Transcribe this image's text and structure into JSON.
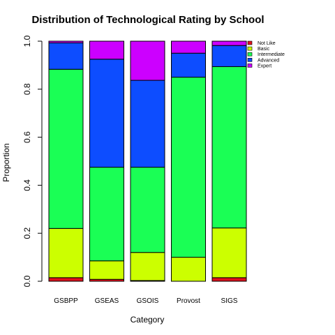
{
  "chart_data": {
    "type": "bar",
    "stacked": true,
    "title": "Distribution of Technological Rating by School",
    "xlabel": "Category",
    "ylabel": "Proportion",
    "ylim": [
      0,
      1
    ],
    "yticks": [
      "0.0",
      "0.2",
      "0.4",
      "0.6",
      "0.8",
      "1.0"
    ],
    "categories": [
      "GSBPP",
      "GSEAS",
      "GSOIS",
      "Provost",
      "SIGS"
    ],
    "series": [
      {
        "name": "Not Like",
        "color": "#e0111c",
        "values": [
          0.015,
          0.008,
          0.003,
          0.0,
          0.015
        ]
      },
      {
        "name": "Basic",
        "color": "#ccff00",
        "values": [
          0.205,
          0.077,
          0.117,
          0.1,
          0.207
        ]
      },
      {
        "name": "Intermediate",
        "color": "#1aff55",
        "values": [
          0.663,
          0.39,
          0.355,
          0.75,
          0.672
        ]
      },
      {
        "name": "Advanced",
        "color": "#0d4dff",
        "values": [
          0.11,
          0.45,
          0.362,
          0.1,
          0.088
        ]
      },
      {
        "name": "Expert",
        "color": "#cc00ff",
        "values": [
          0.007,
          0.075,
          0.163,
          0.05,
          0.018
        ]
      }
    ],
    "legend_position": "top-right",
    "grid": false
  }
}
